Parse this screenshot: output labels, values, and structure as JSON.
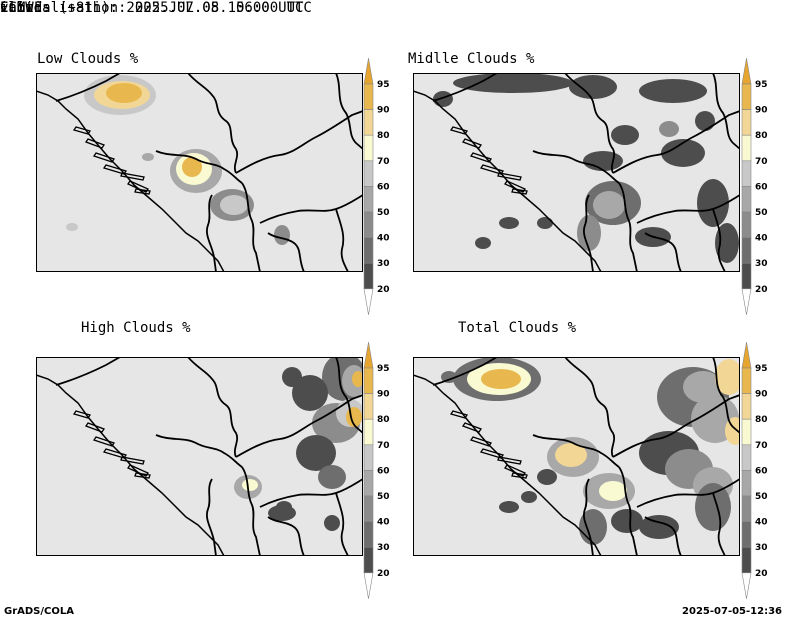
{
  "header": {
    "model": "ECMWF",
    "parameter": "Clouds",
    "initialisation": "initialisation: 2025.07.05. 06:00 UTC",
    "valid": "valid: (+81h): 2025.JUL.08 15:00 UTC"
  },
  "panels": [
    {
      "title": "Low Clouds %"
    },
    {
      "title": "Midlle Clouds %"
    },
    {
      "title": "High Clouds %"
    },
    {
      "title": "Total Clouds %"
    }
  ],
  "colorbar": {
    "levels": [
      "20",
      "30",
      "40",
      "50",
      "60",
      "70",
      "80",
      "90",
      "95"
    ],
    "colors": {
      "lt20": "#ffffff",
      "20-30": "#4d4d4d",
      "30-40": "#6e6e6e",
      "40-50": "#8c8c8c",
      "50-60": "#a8a8a8",
      "60-70": "#c8c8c8",
      "70-80": "#fafad2",
      "80-90": "#f2d696",
      "90-95": "#e8b84e",
      "gt95": "#e6a530"
    }
  },
  "colors": {
    "background_field": "#e6e6e6",
    "border": "#000000"
  },
  "footer": {
    "left": "GrADS/COLA",
    "right": "2025-07-05-12:36"
  }
}
